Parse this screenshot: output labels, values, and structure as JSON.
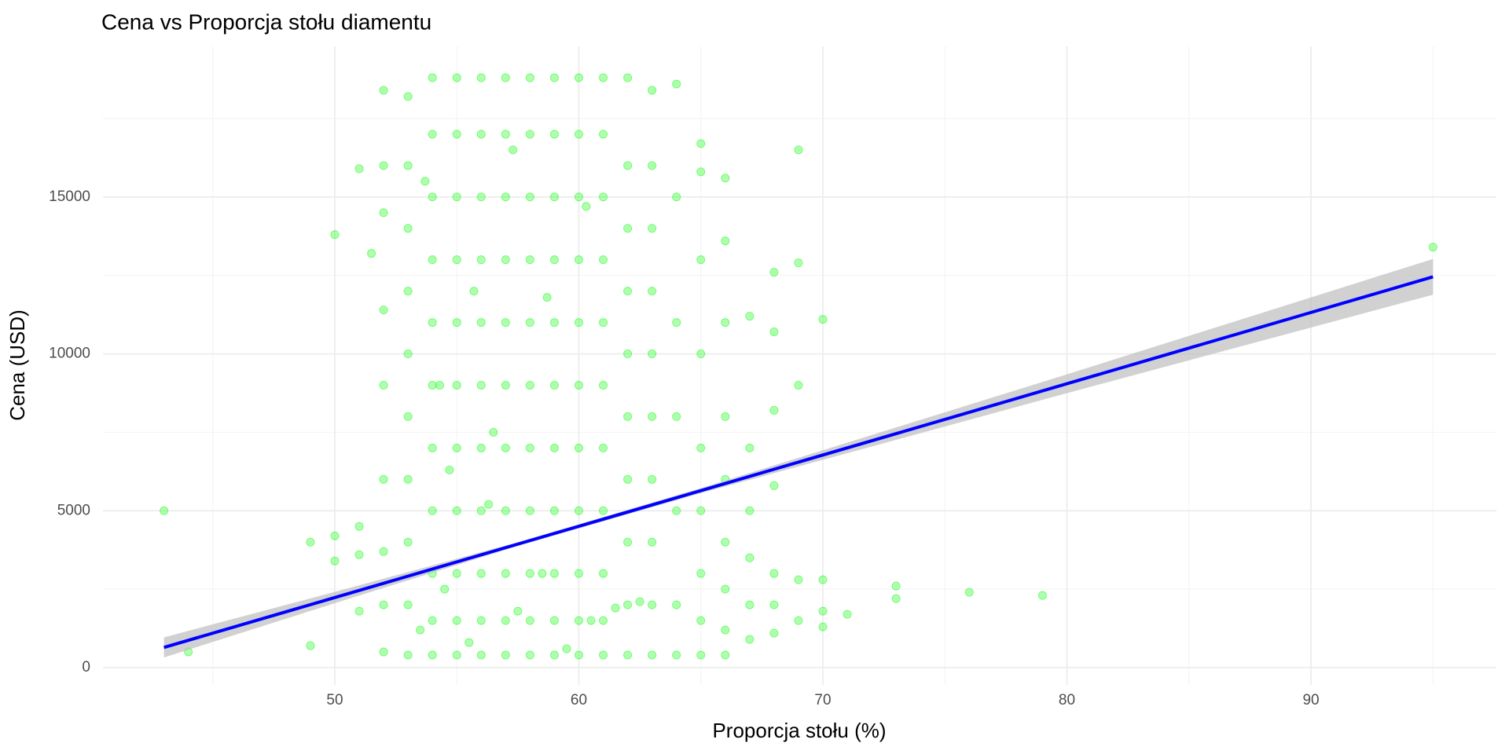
{
  "chart_data": {
    "type": "scatter",
    "title": "Cena vs Proporcja stołu diamentu",
    "x_label": "Proporcja stołu (%)",
    "y_label": "Cena (USD)",
    "xlim": [
      40.5,
      97.6
    ],
    "ylim": [
      -550,
      19800
    ],
    "xticks": [
      50,
      60,
      70,
      80,
      90
    ],
    "yticks": [
      0,
      5000,
      10000,
      15000
    ],
    "grid": true,
    "series": [
      {
        "color": "#00ff00",
        "opacity": 0.3,
        "x": [
          52,
          52,
          52,
          52,
          52,
          52,
          52,
          52,
          52,
          53,
          53,
          53,
          53,
          53,
          53,
          53,
          53,
          53,
          53,
          54,
          54,
          54,
          54,
          54,
          54,
          54,
          54,
          54,
          54,
          54,
          55,
          55,
          55,
          55,
          55,
          55,
          55,
          55,
          55,
          55,
          55,
          56,
          56,
          56,
          56,
          56,
          56,
          56,
          56,
          56,
          56,
          56,
          57,
          57,
          57,
          57,
          57,
          57,
          57,
          57,
          57,
          57,
          57,
          58,
          58,
          58,
          58,
          58,
          58,
          58,
          58,
          58,
          58,
          58,
          59,
          59,
          59,
          59,
          59,
          59,
          59,
          59,
          59,
          59,
          59,
          60,
          60,
          60,
          60,
          60,
          60,
          60,
          60,
          60,
          60,
          60,
          61,
          61,
          61,
          61,
          61,
          61,
          61,
          61,
          61,
          61,
          61,
          62,
          62,
          62,
          62,
          62,
          62,
          62,
          62,
          62,
          62,
          63,
          63,
          63,
          63,
          63,
          63,
          63,
          63,
          63,
          63,
          64,
          64,
          64,
          64,
          64,
          64,
          64,
          65,
          65,
          65,
          65,
          65,
          65,
          65,
          65,
          65,
          66,
          66,
          66,
          66,
          66,
          66,
          66,
          66,
          66,
          67,
          67,
          67,
          67,
          67,
          67,
          68,
          68,
          68,
          68,
          68,
          68,
          68,
          69,
          69,
          69,
          69,
          69,
          70,
          70,
          70,
          70,
          43,
          44,
          49,
          49,
          50,
          50,
          50,
          51,
          51,
          51,
          51,
          51.5,
          71,
          73,
          73,
          76,
          79,
          95,
          53.5,
          54.5,
          55.5,
          56.5,
          57.5,
          58.5,
          59.5,
          60.5,
          54.3,
          55.7,
          57.3,
          58.7,
          60.3,
          61.5,
          62.5,
          56.3,
          53.7,
          54.7
        ],
        "values": [
          500,
          2000,
          3700,
          6000,
          9000,
          11400,
          14500,
          16000,
          18400,
          400,
          2000,
          4000,
          6000,
          8000,
          10000,
          12000,
          14000,
          16000,
          18200,
          400,
          1500,
          3000,
          5000,
          7000,
          9000,
          11000,
          13000,
          15000,
          17000,
          18800,
          400,
          1500,
          3000,
          5000,
          7000,
          9000,
          11000,
          13000,
          15000,
          17000,
          18800,
          400,
          1500,
          3000,
          5000,
          7000,
          9000,
          11000,
          13000,
          15000,
          17000,
          18800,
          400,
          1500,
          3000,
          5000,
          7000,
          9000,
          11000,
          13000,
          15000,
          17000,
          18800,
          400,
          1500,
          3000,
          5000,
          7000,
          9000,
          11000,
          13000,
          15000,
          17000,
          18800,
          400,
          1500,
          3000,
          5000,
          7000,
          9000,
          11000,
          13000,
          15000,
          17000,
          18800,
          400,
          1500,
          3000,
          5000,
          7000,
          9000,
          11000,
          13000,
          15000,
          17000,
          18800,
          400,
          1500,
          3000,
          5000,
          7000,
          9000,
          11000,
          13000,
          15000,
          17000,
          18800,
          400,
          2000,
          4000,
          6000,
          8000,
          10000,
          12000,
          14000,
          16000,
          18800,
          400,
          2000,
          4000,
          6000,
          8000,
          10000,
          12000,
          14000,
          16000,
          18400,
          400,
          2000,
          5000,
          8000,
          11000,
          15000,
          18600,
          400,
          1500,
          3000,
          5000,
          7000,
          10000,
          13000,
          15800,
          16700,
          400,
          1200,
          2500,
          4000,
          6000,
          8000,
          11000,
          13600,
          15600,
          900,
          2000,
          3500,
          5000,
          7000,
          11200,
          1100,
          2000,
          3000,
          5800,
          8200,
          10700,
          12600,
          1500,
          2800,
          9000,
          12900,
          16500,
          1300,
          1800,
          2800,
          11100,
          5000,
          500,
          4000,
          700,
          4200,
          13800,
          3400,
          15900,
          4500,
          1800,
          3600,
          13200,
          1700,
          2600,
          2200,
          2400,
          2300,
          13400,
          1200,
          2500,
          800,
          7500,
          1800,
          3000,
          600,
          1500,
          9000,
          12000,
          16500,
          11800,
          14700,
          1900,
          2100,
          5200,
          15500,
          6300
        ]
      }
    ],
    "trend": {
      "color": "#0000ff",
      "band_color": "#bebebe",
      "x": [
        43,
        50,
        57.5,
        65,
        80,
        95
      ],
      "values": [
        644,
        2234,
        3937,
        5640,
        9047,
        12454
      ],
      "lower": [
        324,
        2054,
        3877,
        5560,
        8747,
        11884
      ],
      "upper": [
        964,
        2414,
        3997,
        5720,
        9347,
        13024
      ]
    }
  }
}
